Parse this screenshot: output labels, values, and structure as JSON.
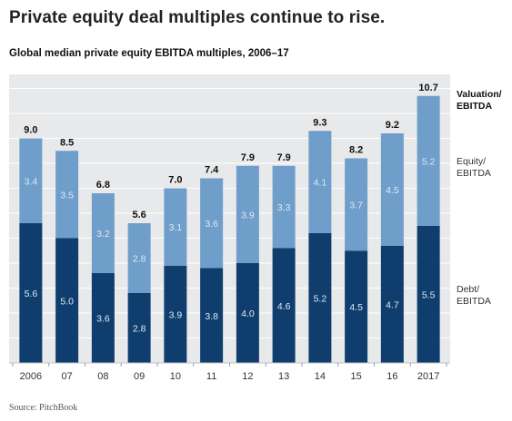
{
  "headline": "Private equity deal multiples continue to rise.",
  "subtitle": "Global median private equity EBITDA multiples, 2006–17",
  "source": "Source: PitchBook",
  "colors": {
    "panel": "#e8e9ea",
    "grid": "#ffffff",
    "debt": "#0f3e6e",
    "equity": "#6f9ecb",
    "inner_label": "#dfe8f2",
    "total_label": "#111111"
  },
  "chart_data": {
    "type": "bar",
    "stacked": true,
    "categories": [
      "2006",
      "07",
      "08",
      "09",
      "10",
      "11",
      "12",
      "13",
      "14",
      "15",
      "16",
      "2017"
    ],
    "series": [
      {
        "name": "Debt/ EBITDA",
        "values": [
          5.6,
          5.0,
          3.6,
          2.8,
          3.9,
          3.8,
          4.0,
          4.6,
          5.2,
          4.5,
          4.7,
          5.5
        ]
      },
      {
        "name": "Equity/ EBITDA",
        "values": [
          3.4,
          3.5,
          3.2,
          2.8,
          3.1,
          3.6,
          3.9,
          3.3,
          4.1,
          3.7,
          4.5,
          5.2
        ]
      }
    ],
    "totals_label": "Valuation/ EBITDA",
    "totals": [
      "9.0",
      "8.5",
      "6.8",
      "5.6",
      "7.0",
      "7.4",
      "7.9",
      "7.9",
      "9.3",
      "8.2",
      "9.2",
      "10.7"
    ],
    "ylim": [
      0,
      12.5
    ],
    "grid": true,
    "legend_placement": "right"
  }
}
